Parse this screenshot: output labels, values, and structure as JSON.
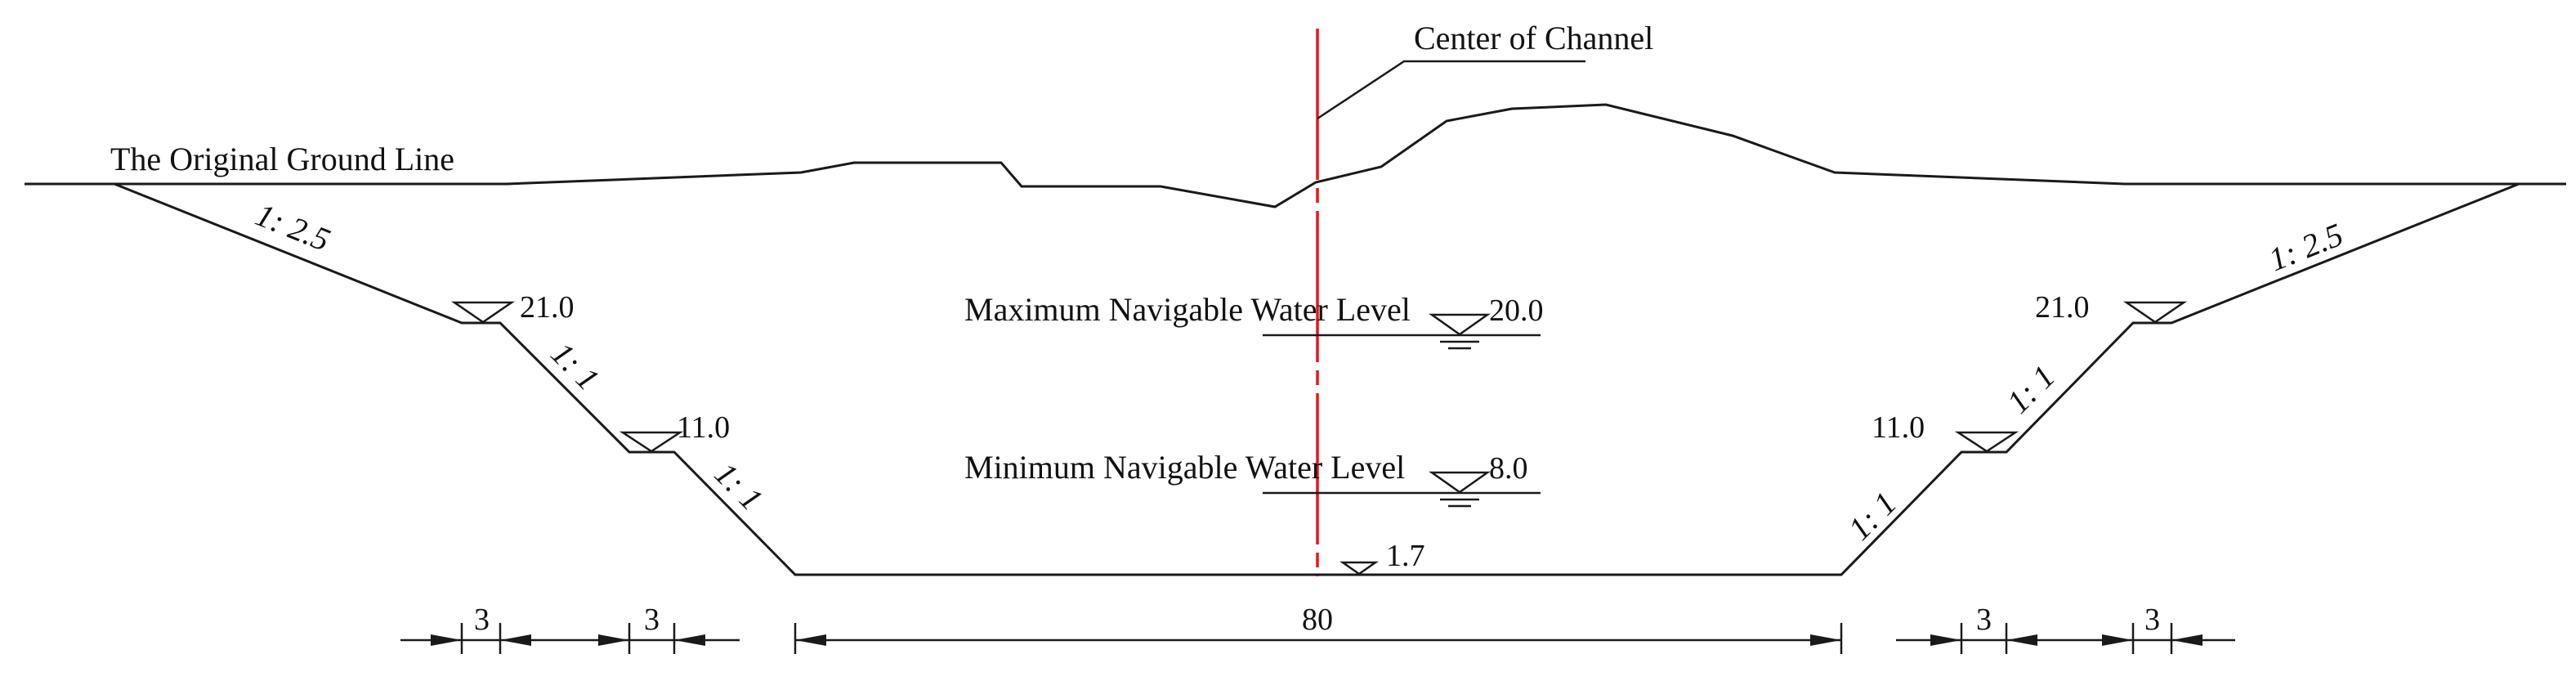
{
  "labels": {
    "center_channel": "Center of Channel",
    "ground_line": "The Original Ground Line",
    "max_level": "Maximum Navigable Water Level",
    "min_level": "Minimum Navigable Water Level"
  },
  "elevations": {
    "max_water": "20.0",
    "min_water": "8.0",
    "bottom": "1.7",
    "left_berm_upper": "21.0",
    "left_berm_lower": "11.0",
    "right_berm_upper": "21.0",
    "right_berm_lower": "11.0"
  },
  "slopes": {
    "left_upper": "1:  2.5",
    "left_middle": "1:  1",
    "left_lower": "1:  1",
    "right_upper": "1:  2.5",
    "right_middle": "1:  1",
    "right_lower": "1:  1"
  },
  "dimensions": {
    "left_berm_1": "3",
    "left_berm_2": "3",
    "bottom_width": "80",
    "right_berm_1": "3",
    "right_berm_2": "3"
  },
  "colors": {
    "center_line": "#e8141e",
    "lines": "#1a1a1a"
  }
}
